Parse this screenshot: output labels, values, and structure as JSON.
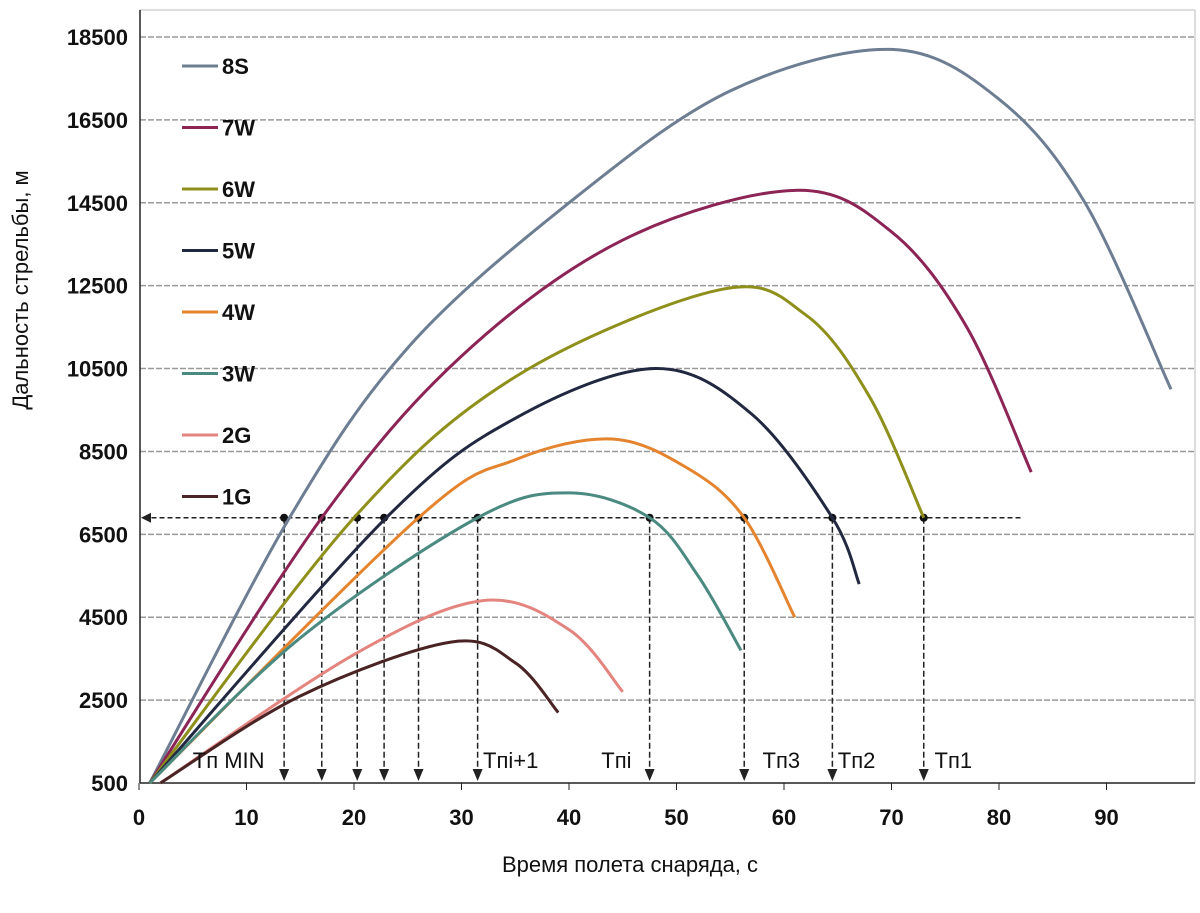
{
  "chart_data": {
    "type": "line",
    "title": "",
    "xlabel": "Время полета снаряда, с",
    "ylabel": "Дальность стрельбы, м",
    "xlim": [
      0,
      97
    ],
    "ylim": [
      500,
      18500
    ],
    "xticks": [
      0,
      10,
      20,
      30,
      40,
      50,
      60,
      70,
      80,
      90
    ],
    "yticks": [
      500,
      2500,
      4500,
      6500,
      8500,
      10500,
      12500,
      14500,
      16500,
      18500
    ],
    "grid": "horizontal",
    "legend_position": "top-left",
    "series": [
      {
        "name": "8S",
        "color": "#6d7d92",
        "points": [
          [
            1,
            500
          ],
          [
            14,
            6900
          ],
          [
            25,
            11000
          ],
          [
            40,
            14500
          ],
          [
            55,
            17200
          ],
          [
            70,
            18200
          ],
          [
            80,
            17000
          ],
          [
            88,
            14500
          ],
          [
            96,
            10000
          ]
        ]
      },
      {
        "name": "7W",
        "color": "#8c2456",
        "points": [
          [
            1,
            500
          ],
          [
            17,
            6900
          ],
          [
            30,
            10800
          ],
          [
            45,
            13600
          ],
          [
            61,
            14800
          ],
          [
            70,
            13800
          ],
          [
            77,
            11500
          ],
          [
            83,
            8000
          ]
        ]
      },
      {
        "name": "6W",
        "color": "#8f8f1c",
        "points": [
          [
            1,
            500
          ],
          [
            20,
            6900
          ],
          [
            35,
            10300
          ],
          [
            54,
            12400
          ],
          [
            62,
            11800
          ],
          [
            68,
            9800
          ],
          [
            73,
            6900
          ]
        ]
      },
      {
        "name": "5W",
        "color": "#22283f",
        "points": [
          [
            1,
            500
          ],
          [
            23,
            6900
          ],
          [
            35,
            9300
          ],
          [
            48,
            10500
          ],
          [
            57,
            9400
          ],
          [
            64.5,
            6900
          ],
          [
            67,
            5300
          ]
        ]
      },
      {
        "name": "4W",
        "color": "#e5842e",
        "points": [
          [
            1,
            500
          ],
          [
            26,
            6900
          ],
          [
            35,
            8300
          ],
          [
            44,
            8800
          ],
          [
            51,
            8100
          ],
          [
            56.3,
            6900
          ],
          [
            61,
            4500
          ]
        ]
      },
      {
        "name": "3W",
        "color": "#4b8a80",
        "points": [
          [
            1,
            500
          ],
          [
            15,
            4000
          ],
          [
            31.5,
            6900
          ],
          [
            40,
            7500
          ],
          [
            47.5,
            6900
          ],
          [
            52,
            5500
          ],
          [
            56,
            3700
          ]
        ]
      },
      {
        "name": "2G",
        "color": "#e4847f",
        "points": [
          [
            2,
            500
          ],
          [
            20,
            3600
          ],
          [
            32,
            4900
          ],
          [
            40,
            4200
          ],
          [
            45,
            2700
          ]
        ]
      },
      {
        "name": "1G",
        "color": "#4a2424",
        "points": [
          [
            2,
            500
          ],
          [
            15,
            2600
          ],
          [
            29,
            3900
          ],
          [
            35,
            3400
          ],
          [
            39,
            2200
          ]
        ]
      }
    ],
    "reference_range": 6900,
    "reference_times": [
      13.5,
      17,
      20.3,
      22.8,
      26,
      31.5,
      47.5,
      56.3,
      64.5,
      73
    ],
    "annotations": [
      {
        "text": "Tп MIN",
        "x": 5
      },
      {
        "text": "Tпi+1",
        "x": 32
      },
      {
        "text": "Tпi",
        "x": 43
      },
      {
        "text": "Tп3",
        "x": 58
      },
      {
        "text": "Tп2",
        "x": 65
      },
      {
        "text": "Tп1",
        "x": 74
      }
    ]
  }
}
